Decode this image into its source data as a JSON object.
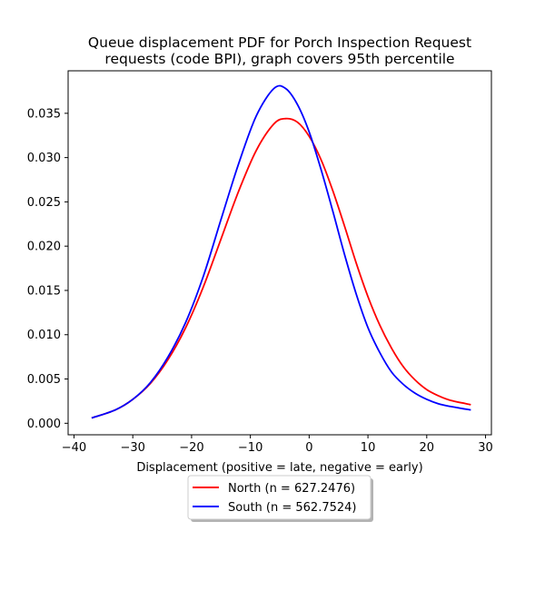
{
  "chart_data": {
    "type": "line",
    "title_line1": "Queue displacement PDF for Porch Inspection Request",
    "title_line2": "requests (code BPI), graph covers 95th percentile",
    "xlabel": "Displacement (positive = late, negative = early)",
    "ylabel": "",
    "xlim": [
      -41,
      31
    ],
    "ylim": [
      -0.0013,
      0.0398
    ],
    "xticks": [
      -40,
      -30,
      -20,
      -10,
      0,
      10,
      20,
      30
    ],
    "xtick_labels": [
      "−40",
      "−30",
      "−20",
      "−10",
      "0",
      "10",
      "20",
      "30"
    ],
    "yticks": [
      0.0,
      0.005,
      0.01,
      0.015,
      0.02,
      0.025,
      0.03,
      0.035
    ],
    "ytick_labels": [
      "0.000",
      "0.005",
      "0.010",
      "0.015",
      "0.020",
      "0.025",
      "0.030",
      "0.035"
    ],
    "grid": false,
    "legend_placement": "below plot, centered",
    "x": [
      -37,
      -33,
      -30,
      -27,
      -24,
      -21,
      -18,
      -15,
      -12,
      -9,
      -6,
      -4,
      -2,
      0,
      2,
      4,
      6,
      8,
      10,
      12,
      14,
      16,
      18,
      20,
      22,
      24,
      27.5
    ],
    "series": [
      {
        "name": "North (n = 627.2476)",
        "color": "#ff0000",
        "values": [
          0.0006,
          0.0015,
          0.0027,
          0.0045,
          0.0072,
          0.0108,
          0.0154,
          0.0208,
          0.0262,
          0.0308,
          0.0338,
          0.0344,
          0.034,
          0.0324,
          0.0298,
          0.0263,
          0.0223,
          0.0181,
          0.0143,
          0.0111,
          0.0085,
          0.0064,
          0.0049,
          0.0038,
          0.0031,
          0.0026,
          0.0021
        ]
      },
      {
        "name": "South (n = 562.7524)",
        "color": "#0000ff",
        "values": [
          0.0006,
          0.0015,
          0.0027,
          0.0046,
          0.0075,
          0.0114,
          0.0166,
          0.023,
          0.0293,
          0.0347,
          0.0378,
          0.0378,
          0.036,
          0.0329,
          0.0287,
          0.024,
          0.0191,
          0.0146,
          0.0108,
          0.008,
          0.0058,
          0.0044,
          0.0034,
          0.0027,
          0.0022,
          0.0019,
          0.0015
        ]
      }
    ]
  }
}
